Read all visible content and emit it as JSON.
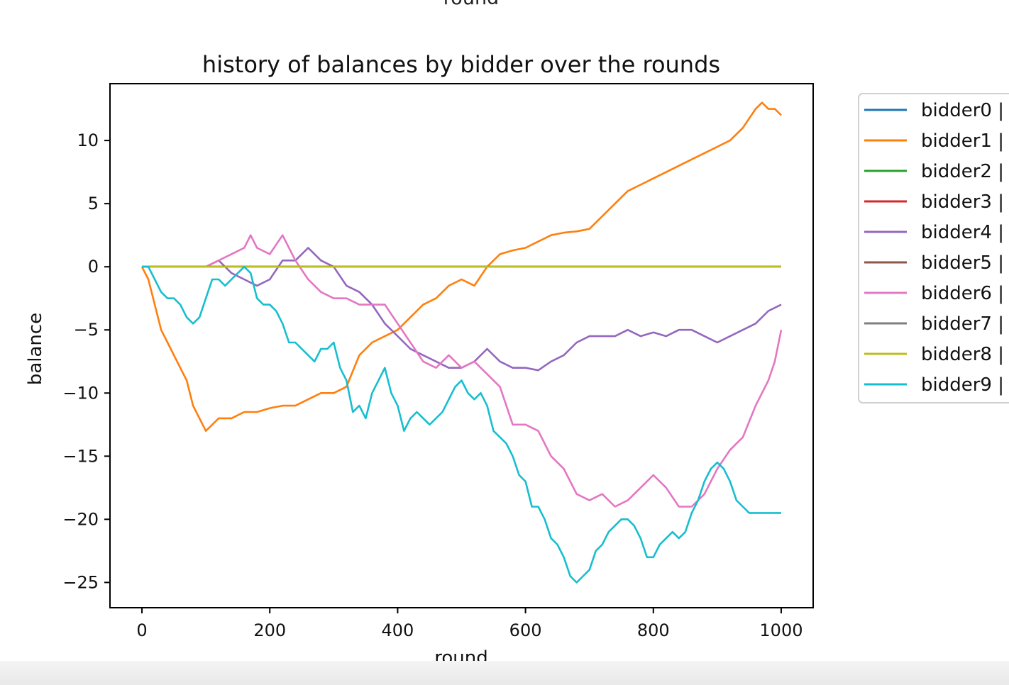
{
  "top_cut_label": "round",
  "chart_data": {
    "type": "line",
    "title": "history of balances by bidder over the rounds",
    "xlabel": "round",
    "ylabel": "balance",
    "xlim": [
      -50,
      1050
    ],
    "ylim": [
      -27,
      14.5
    ],
    "xticks": [
      0,
      200,
      400,
      600,
      800,
      1000
    ],
    "xtick_labels": [
      "0",
      "200",
      "400",
      "600",
      "800",
      "1000"
    ],
    "yticks": [
      10,
      5,
      0,
      -5,
      -10,
      -15,
      -20,
      -25
    ],
    "ytick_labels": [
      "10",
      "5",
      "0",
      "−5",
      "−10",
      "−15",
      "−20",
      "−25"
    ],
    "grid": false,
    "legend_position": "outside-right",
    "series": [
      {
        "name": "bidder0 |",
        "color": "#1f77b4",
        "x": [
          0,
          1000
        ],
        "y": [
          0,
          0
        ]
      },
      {
        "name": "bidder1 |",
        "color": "#ff7f0e",
        "x": [
          0,
          10,
          20,
          30,
          40,
          50,
          60,
          70,
          80,
          90,
          100,
          120,
          140,
          160,
          180,
          200,
          220,
          240,
          260,
          280,
          300,
          320,
          340,
          360,
          380,
          400,
          420,
          440,
          460,
          480,
          500,
          520,
          540,
          560,
          580,
          600,
          620,
          640,
          660,
          680,
          700,
          720,
          740,
          760,
          780,
          800,
          820,
          840,
          860,
          880,
          900,
          920,
          940,
          960,
          970,
          980,
          990,
          1000
        ],
        "y": [
          0,
          -1,
          -3,
          -5,
          -6,
          -7,
          -8,
          -9,
          -11,
          -12,
          -13,
          -12,
          -12,
          -11.5,
          -11.5,
          -11.2,
          -11,
          -11,
          -10.5,
          -10,
          -10,
          -9.5,
          -7,
          -6,
          -5.5,
          -5,
          -4,
          -3,
          -2.5,
          -1.5,
          -1,
          -1.5,
          0,
          1,
          1.3,
          1.5,
          2,
          2.5,
          2.7,
          2.8,
          3,
          4,
          5,
          6,
          6.5,
          7,
          7.5,
          8,
          8.5,
          9,
          9.5,
          10,
          11,
          12.5,
          13,
          12.5,
          12.5,
          12
        ]
      },
      {
        "name": "bidder2 |",
        "color": "#2ca02c",
        "x": [
          0,
          1000
        ],
        "y": [
          0,
          0
        ]
      },
      {
        "name": "bidder3 |",
        "color": "#d62728",
        "x": [
          0,
          1000
        ],
        "y": [
          0,
          0
        ]
      },
      {
        "name": "bidder4 |",
        "color": "#9467bd",
        "x": [
          100,
          120,
          140,
          160,
          180,
          200,
          220,
          240,
          260,
          280,
          300,
          320,
          340,
          360,
          380,
          400,
          420,
          440,
          460,
          480,
          500,
          520,
          540,
          560,
          580,
          600,
          620,
          640,
          660,
          680,
          700,
          720,
          740,
          760,
          780,
          800,
          820,
          840,
          860,
          880,
          900,
          920,
          940,
          960,
          980,
          1000
        ],
        "y": [
          0,
          0.5,
          -0.5,
          -1,
          -1.5,
          -1,
          0.5,
          0.5,
          1.5,
          0.5,
          0,
          -1.5,
          -2,
          -3,
          -4.5,
          -5.5,
          -6.5,
          -7,
          -7.5,
          -8,
          -8,
          -7.5,
          -6.5,
          -7.5,
          -8,
          -8,
          -8.2,
          -7.5,
          -7,
          -6,
          -5.5,
          -5.5,
          -5.5,
          -5,
          -5.5,
          -5.2,
          -5.5,
          -5,
          -5,
          -5.5,
          -6,
          -5.5,
          -5,
          -4.5,
          -3.5,
          -3
        ]
      },
      {
        "name": "bidder5 |",
        "color": "#8c564b",
        "x": [
          0,
          1000
        ],
        "y": [
          0,
          0
        ]
      },
      {
        "name": "bidder6 |",
        "color": "#e377c2",
        "x": [
          100,
          120,
          140,
          160,
          170,
          180,
          200,
          220,
          240,
          260,
          280,
          300,
          320,
          340,
          360,
          380,
          400,
          420,
          440,
          460,
          480,
          500,
          520,
          540,
          560,
          580,
          600,
          620,
          640,
          660,
          680,
          700,
          720,
          740,
          760,
          780,
          800,
          820,
          840,
          860,
          880,
          900,
          920,
          940,
          960,
          980,
          990,
          1000
        ],
        "y": [
          0,
          0.5,
          1,
          1.5,
          2.5,
          1.5,
          1,
          2.5,
          0.5,
          -1,
          -2,
          -2.5,
          -2.5,
          -3,
          -3,
          -3,
          -4.5,
          -6,
          -7.5,
          -8,
          -7,
          -8,
          -7.5,
          -8.5,
          -9.5,
          -12.5,
          -12.5,
          -13,
          -15,
          -16,
          -18,
          -18.5,
          -18,
          -19,
          -18.5,
          -17.5,
          -16.5,
          -17.5,
          -19,
          -19,
          -18,
          -16,
          -14.5,
          -13.5,
          -11,
          -9,
          -7.5,
          -5
        ]
      },
      {
        "name": "bidder7 |",
        "color": "#7f7f7f",
        "x": [
          0,
          1000
        ],
        "y": [
          0,
          0
        ]
      },
      {
        "name": "bidder8 |",
        "color": "#bcbd22",
        "x": [
          0,
          1000
        ],
        "y": [
          0,
          0
        ]
      },
      {
        "name": "bidder9 |",
        "color": "#17becf",
        "x": [
          0,
          10,
          20,
          30,
          40,
          50,
          60,
          70,
          80,
          90,
          100,
          110,
          120,
          130,
          140,
          150,
          160,
          170,
          180,
          190,
          200,
          210,
          220,
          230,
          240,
          250,
          260,
          270,
          280,
          290,
          300,
          310,
          320,
          330,
          340,
          350,
          360,
          370,
          380,
          390,
          400,
          410,
          420,
          430,
          440,
          450,
          460,
          470,
          480,
          490,
          500,
          510,
          520,
          530,
          540,
          550,
          560,
          570,
          580,
          590,
          600,
          610,
          620,
          630,
          640,
          650,
          660,
          670,
          680,
          690,
          700,
          710,
          720,
          730,
          740,
          750,
          760,
          770,
          780,
          790,
          800,
          810,
          820,
          830,
          840,
          850,
          860,
          870,
          880,
          890,
          900,
          910,
          920,
          930,
          940,
          950,
          960,
          970,
          980,
          990,
          1000
        ],
        "y": [
          0,
          0,
          -1,
          -2,
          -2.5,
          -2.5,
          -3,
          -4,
          -4.5,
          -4,
          -2.5,
          -1,
          -1,
          -1.5,
          -1,
          -0.5,
          0,
          -0.5,
          -2.5,
          -3,
          -3,
          -3.5,
          -4.5,
          -6,
          -6,
          -6.5,
          -7,
          -7.5,
          -6.5,
          -6.5,
          -6,
          -8,
          -9,
          -11.5,
          -11,
          -12,
          -10,
          -9,
          -8,
          -10,
          -11,
          -13,
          -12,
          -11.5,
          -12,
          -12.5,
          -12,
          -11.5,
          -10.5,
          -9.5,
          -9,
          -10,
          -10.5,
          -10,
          -11,
          -13,
          -13.5,
          -14,
          -15,
          -16.5,
          -17,
          -19,
          -19,
          -20,
          -21.5,
          -22,
          -23,
          -24.5,
          -25,
          -24.5,
          -24,
          -22.5,
          -22,
          -21,
          -20.5,
          -20,
          -20,
          -20.5,
          -21.5,
          -23,
          -23,
          -22,
          -21.5,
          -21,
          -21.5,
          -21,
          -19.5,
          -18.5,
          -17,
          -16,
          -15.5,
          -16,
          -17,
          -18.5,
          -19,
          -19.5,
          -19.5,
          -19.5,
          -19.5,
          -19.5,
          -19.5
        ]
      }
    ]
  }
}
